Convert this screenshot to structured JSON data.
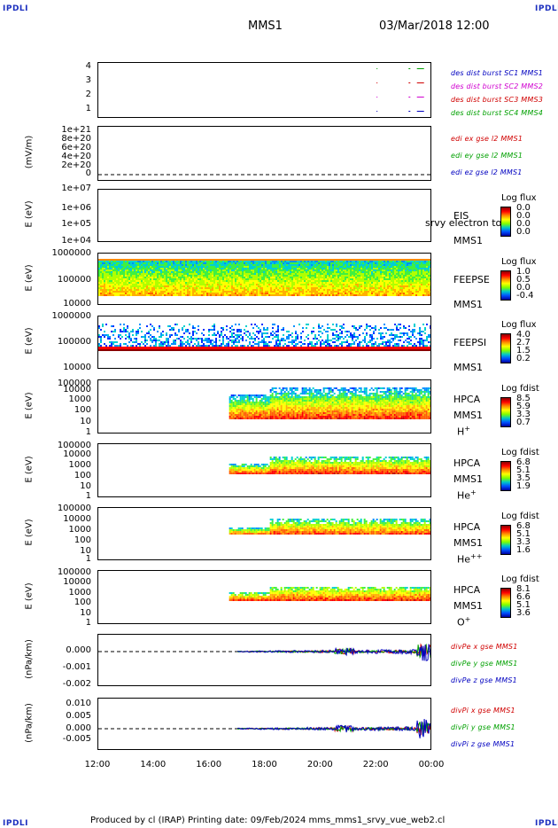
{
  "corners": {
    "label": "IPDLI"
  },
  "header": {
    "spacecraft": "MMS1",
    "datetime": "03/Mar/2018 12:00"
  },
  "footer": {
    "text": "Produced by cl (IRAP)   Printing date: 09/Feb/2024   mms_mms1_srvy_vue_web2.cl"
  },
  "x_ticks": [
    "12:00",
    "14:00",
    "16:00",
    "18:00",
    "20:00",
    "22:00",
    "00:00"
  ],
  "panels": [
    {
      "id": "burst",
      "ylabel": "",
      "ticks": [
        "4",
        "3",
        "2",
        "1"
      ],
      "right_labels": [
        {
          "text": "des dist burst SC1 MMS1",
          "color": "#0000c0"
        },
        {
          "text": "des dist burst SC2 MMS2",
          "color": "#d000d0"
        },
        {
          "text": "des dist burst SC3 MMS3",
          "color": "#d00000"
        },
        {
          "text": "des dist burst SC4 MMS4",
          "color": "#00a000"
        }
      ]
    },
    {
      "id": "edi",
      "ylabel": "(mV/m)",
      "ticks": [
        "1e+21",
        "8e+20",
        "6e+20",
        "4e+20",
        "2e+20",
        "0"
      ],
      "right_labels": [
        {
          "text": "edi ex gse l2 MMS1",
          "color": "#d00000"
        },
        {
          "text": "edi ey gse l2 MMS1",
          "color": "#00a000"
        },
        {
          "text": "edi ez gse l2 MMS1",
          "color": "#0000c0"
        }
      ]
    },
    {
      "id": "eis",
      "ylabel": "E (eV)",
      "ticks": [
        "1e+07",
        "1e+06",
        "1e+05",
        "1e+04"
      ],
      "instrument": [
        "EIS",
        "MMS1"
      ],
      "overlay": "srvy electron to",
      "cbar": {
        "title": "Log flux",
        "values": [
          "0.0",
          "0.0",
          "0.0",
          "0.0"
        ]
      }
    },
    {
      "id": "feepse",
      "ylabel": "E (eV)",
      "ticks": [
        "1000000",
        "100000",
        "10000"
      ],
      "instrument": [
        "FEEPSE",
        "MMS1"
      ],
      "cbar": {
        "title": "Log flux",
        "values": [
          "1.0",
          "0.5",
          "0.0",
          "-0.4"
        ]
      }
    },
    {
      "id": "feepsi",
      "ylabel": "E (eV)",
      "ticks": [
        "1000000",
        "100000",
        "10000"
      ],
      "instrument": [
        "FEEPSI",
        "MMS1"
      ],
      "cbar": {
        "title": "Log flux",
        "values": [
          "4.0",
          "2.7",
          "1.5",
          "0.2"
        ]
      }
    },
    {
      "id": "hpca_h",
      "ylabel": "E (eV)",
      "ticks": [
        "100000",
        "10000",
        "1000",
        "100",
        "10",
        "1"
      ],
      "instrument": [
        "HPCA",
        "MMS1",
        "H+"
      ],
      "cbar": {
        "title": "Log fdist",
        "values": [
          "8.5",
          "5.9",
          "3.3",
          "0.7"
        ]
      }
    },
    {
      "id": "hpca_he",
      "ylabel": "E (eV)",
      "ticks": [
        "100000",
        "10000",
        "1000",
        "100",
        "10",
        "1"
      ],
      "instrument": [
        "HPCA",
        "MMS1",
        "He+"
      ],
      "cbar": {
        "title": "Log fdist",
        "values": [
          "6.8",
          "5.1",
          "3.5",
          "1.9"
        ]
      }
    },
    {
      "id": "hpca_hepp",
      "ylabel": "E (eV)",
      "ticks": [
        "100000",
        "10000",
        "1000",
        "100",
        "10",
        "1"
      ],
      "instrument": [
        "HPCA",
        "MMS1",
        "He++"
      ],
      "cbar": {
        "title": "Log fdist",
        "values": [
          "6.8",
          "5.1",
          "3.3",
          "1.6"
        ]
      }
    },
    {
      "id": "hpca_o",
      "ylabel": "E (eV)",
      "ticks": [
        "100000",
        "10000",
        "1000",
        "100",
        "10",
        "1"
      ],
      "instrument": [
        "HPCA",
        "MMS1",
        "O+"
      ],
      "cbar": {
        "title": "Log fdist",
        "values": [
          "8.1",
          "6.6",
          "5.1",
          "3.6"
        ]
      }
    },
    {
      "id": "divpe",
      "ylabel": "(nPa/km)",
      "ticks": [
        "0.000",
        "-0.001",
        "-0.002"
      ],
      "right_labels": [
        {
          "text": "divPe x gse MMS1",
          "color": "#d00000"
        },
        {
          "text": "divPe y gse MMS1",
          "color": "#00a000"
        },
        {
          "text": "divPe z gse MMS1",
          "color": "#0000c0"
        }
      ]
    },
    {
      "id": "divpi",
      "ylabel": "(nPa/km)",
      "ticks": [
        "0.010",
        "0.005",
        "0.000",
        "-0.005"
      ],
      "right_labels": [
        {
          "text": "divPi x gse MMS1",
          "color": "#d00000"
        },
        {
          "text": "divPi y gse MMS1",
          "color": "#00a000"
        },
        {
          "text": "divPi z gse MMS1",
          "color": "#0000c0"
        }
      ]
    }
  ],
  "chart_data": {
    "type": "heatmap",
    "x_range": [
      "12:00",
      "00:00"
    ],
    "datetime": "03/Mar/2018 12:00",
    "panels": [
      {
        "name": "burst",
        "ylim": [
          0.5,
          4.5
        ],
        "segments_x": [
          [
            "22:00",
            "22:00"
          ],
          [
            "23:10",
            "23:40"
          ]
        ]
      },
      {
        "name": "edi",
        "ylim": [
          0,
          1e+21
        ],
        "values": "near zero"
      },
      {
        "name": "EIS",
        "scale": "log",
        "ylim": [
          10000.0,
          10000000.0
        ]
      },
      {
        "name": "FEEPSE",
        "scale": "log",
        "ylim": [
          10000.0,
          1000000.0
        ],
        "data_start": "12:00"
      },
      {
        "name": "FEEPSI",
        "scale": "log",
        "ylim": [
          10000.0,
          1000000.0
        ],
        "data_start": "12:00"
      },
      {
        "name": "HPCA H+",
        "scale": "log",
        "ylim": [
          1,
          100000.0
        ],
        "data_start": "16:40"
      },
      {
        "name": "HPCA He+",
        "scale": "log",
        "ylim": [
          1,
          100000.0
        ],
        "data_start": "16:40"
      },
      {
        "name": "HPCA He++",
        "scale": "log",
        "ylim": [
          1,
          100000.0
        ],
        "data_start": "16:40"
      },
      {
        "name": "HPCA O+",
        "scale": "log",
        "ylim": [
          1,
          100000.0
        ],
        "data_start": "16:40"
      },
      {
        "name": "divPe",
        "ylim": [
          -0.002,
          0.001
        ],
        "data_start": "17:00"
      },
      {
        "name": "divPi",
        "ylim": [
          -0.008,
          0.012
        ],
        "data_start": "17:00"
      }
    ]
  }
}
